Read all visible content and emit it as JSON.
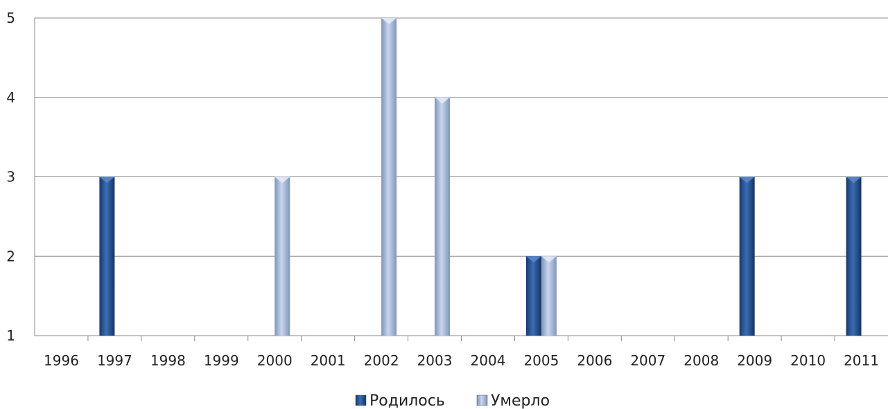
{
  "chart_data": {
    "type": "bar",
    "categories": [
      "1996",
      "1997",
      "1998",
      "1999",
      "2000",
      "2001",
      "2002",
      "2003",
      "2004",
      "2005",
      "2006",
      "2007",
      "2008",
      "2009",
      "2010",
      "2011"
    ],
    "series": [
      {
        "name": "Родилось",
        "color": "#1f4e8c",
        "values": [
          null,
          3,
          null,
          null,
          null,
          null,
          null,
          null,
          null,
          2,
          null,
          null,
          null,
          3,
          null,
          3
        ]
      },
      {
        "name": "Умерло",
        "color": "#9aaed0",
        "values": [
          null,
          null,
          null,
          null,
          3,
          null,
          5,
          4,
          null,
          2,
          null,
          null,
          null,
          null,
          null,
          null
        ]
      }
    ],
    "ylim": [
      1,
      5
    ],
    "yticks": [
      "1",
      "2",
      "3",
      "4",
      "5"
    ],
    "grid": true,
    "legend": "bottom-center"
  }
}
